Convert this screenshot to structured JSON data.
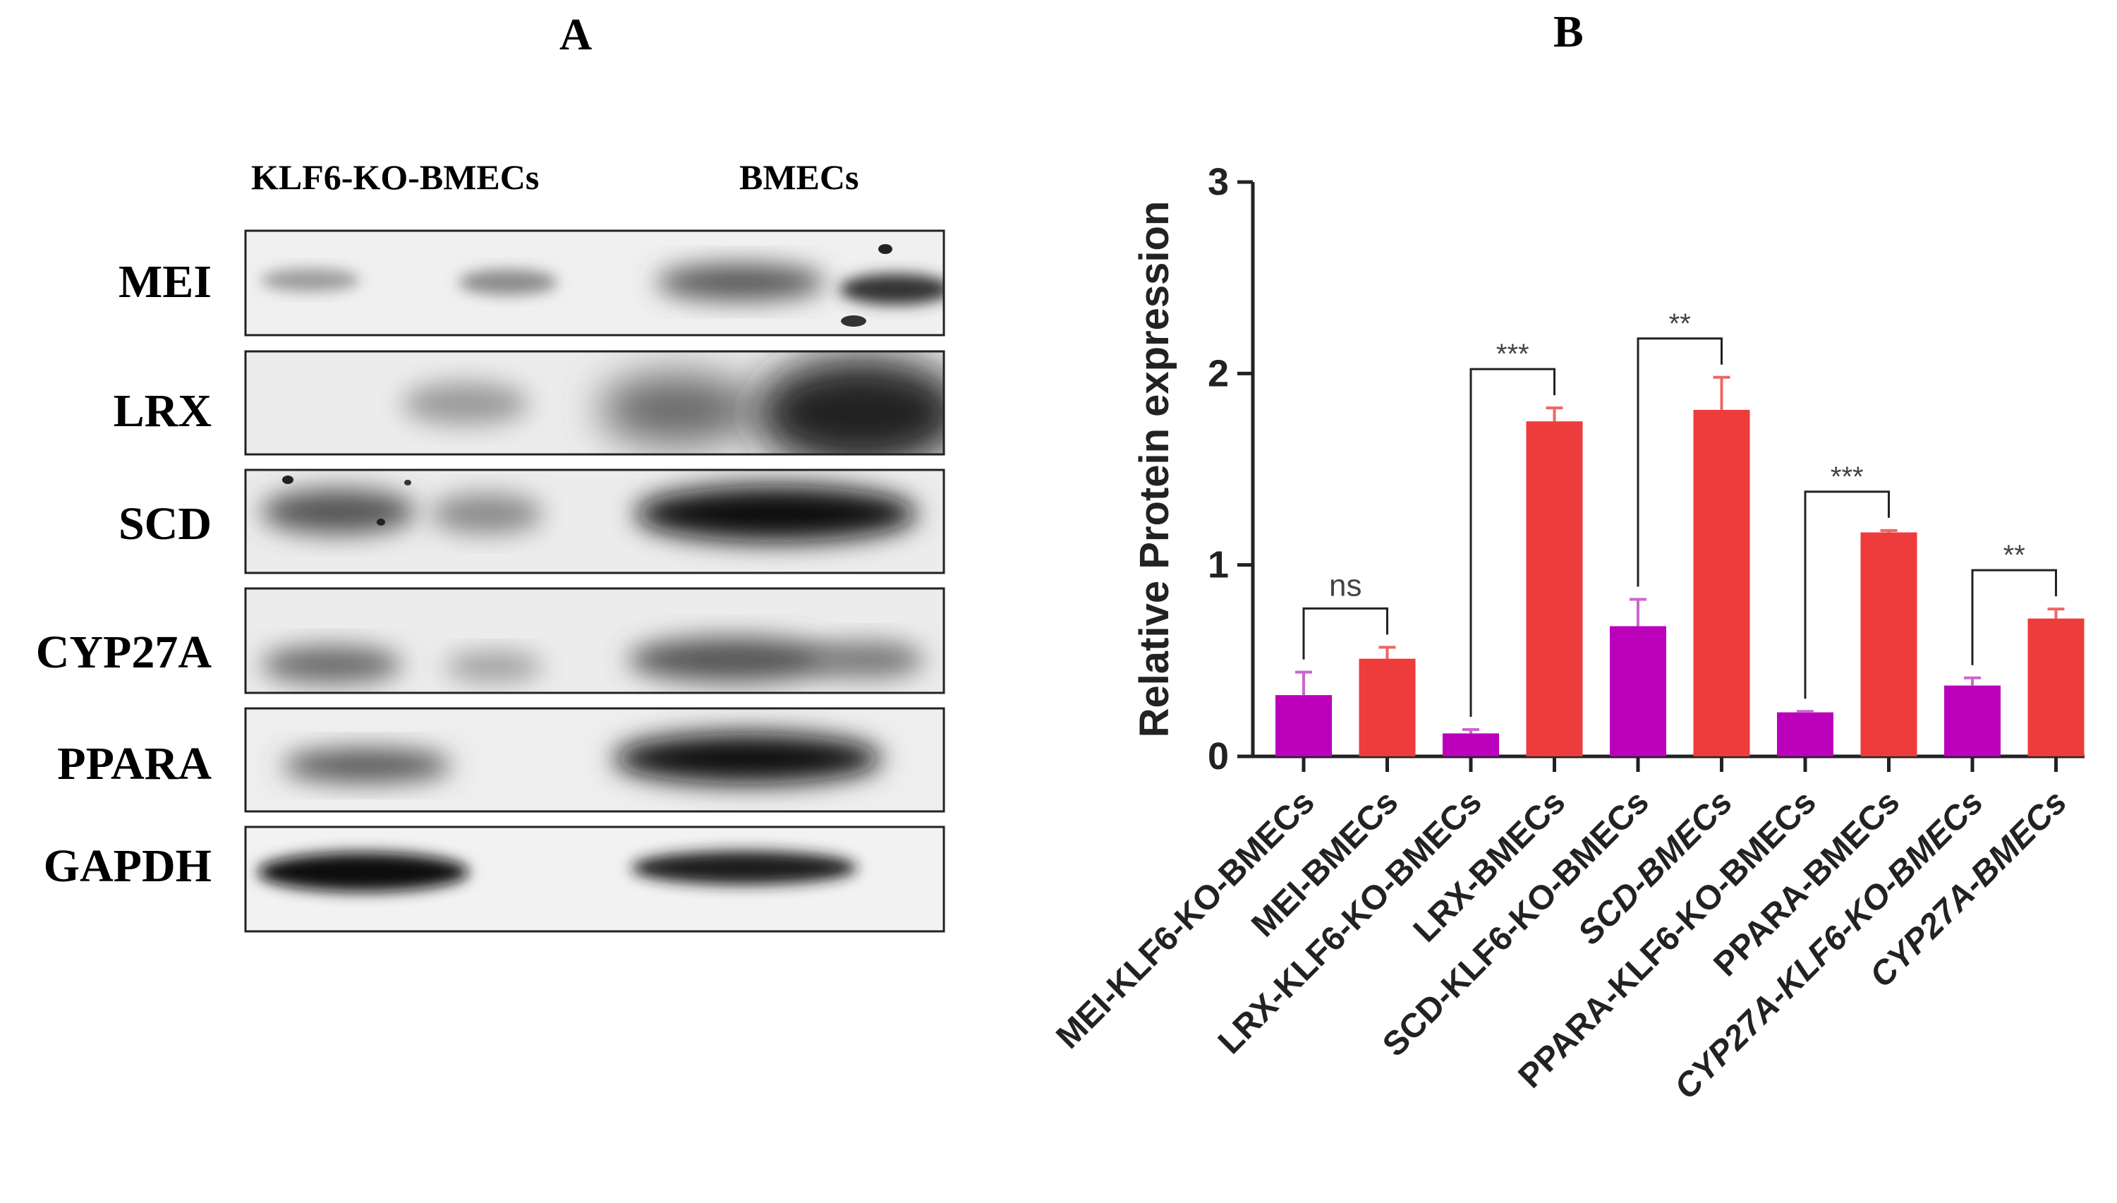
{
  "panel_a": {
    "letter": "A",
    "lane_headers": [
      "KLF6-KO-BMECs",
      "BMECs"
    ],
    "rows": [
      {
        "label": "MEI"
      },
      {
        "label": "LRX"
      },
      {
        "label": "SCD"
      },
      {
        "label": "CYP27A"
      },
      {
        "label": "PPARA"
      },
      {
        "label": "GAPDH"
      }
    ]
  },
  "panel_b": {
    "letter": "B"
  },
  "colors": {
    "ko": "#bb00bb",
    "wt": "#ee3b3b",
    "error_ko": "#cc66cc",
    "error_wt": "#ee6666"
  },
  "chart_data": {
    "type": "bar",
    "title": "",
    "xlabel": "",
    "ylabel": "Relative Protein expression",
    "ylim": [
      0,
      3
    ],
    "yticks": [
      0,
      1,
      2,
      3
    ],
    "categories": [
      "MEI-KLF6-KO-BMECs",
      "MEI-BMECs",
      "LRX-KLF6-KO-BMECs",
      "LRX-BMECs",
      "SCD-KLF6-KO-BMECs",
      "SCD-BMECs",
      "PPARA-KLF6-KO-BMECs",
      "PPARA-BMECs",
      "CYP27A-KLF6-KO-BMECs",
      "CYP27A-BMECs"
    ],
    "values": [
      0.32,
      0.51,
      0.12,
      1.75,
      0.68,
      1.81,
      0.23,
      1.17,
      0.37,
      0.72
    ],
    "errors": [
      0.12,
      0.06,
      0.02,
      0.07,
      0.14,
      0.17,
      0.005,
      0.01,
      0.04,
      0.05
    ],
    "group": [
      "ko",
      "wt",
      "ko",
      "wt",
      "ko",
      "wt",
      "ko",
      "wt",
      "ko",
      "wt"
    ],
    "significance": [
      {
        "pair": [
          0,
          1
        ],
        "label": "ns"
      },
      {
        "pair": [
          2,
          3
        ],
        "label": "***"
      },
      {
        "pair": [
          4,
          5
        ],
        "label": "**"
      },
      {
        "pair": [
          6,
          7
        ],
        "label": "***"
      },
      {
        "pair": [
          8,
          9
        ],
        "label": "**"
      }
    ]
  }
}
